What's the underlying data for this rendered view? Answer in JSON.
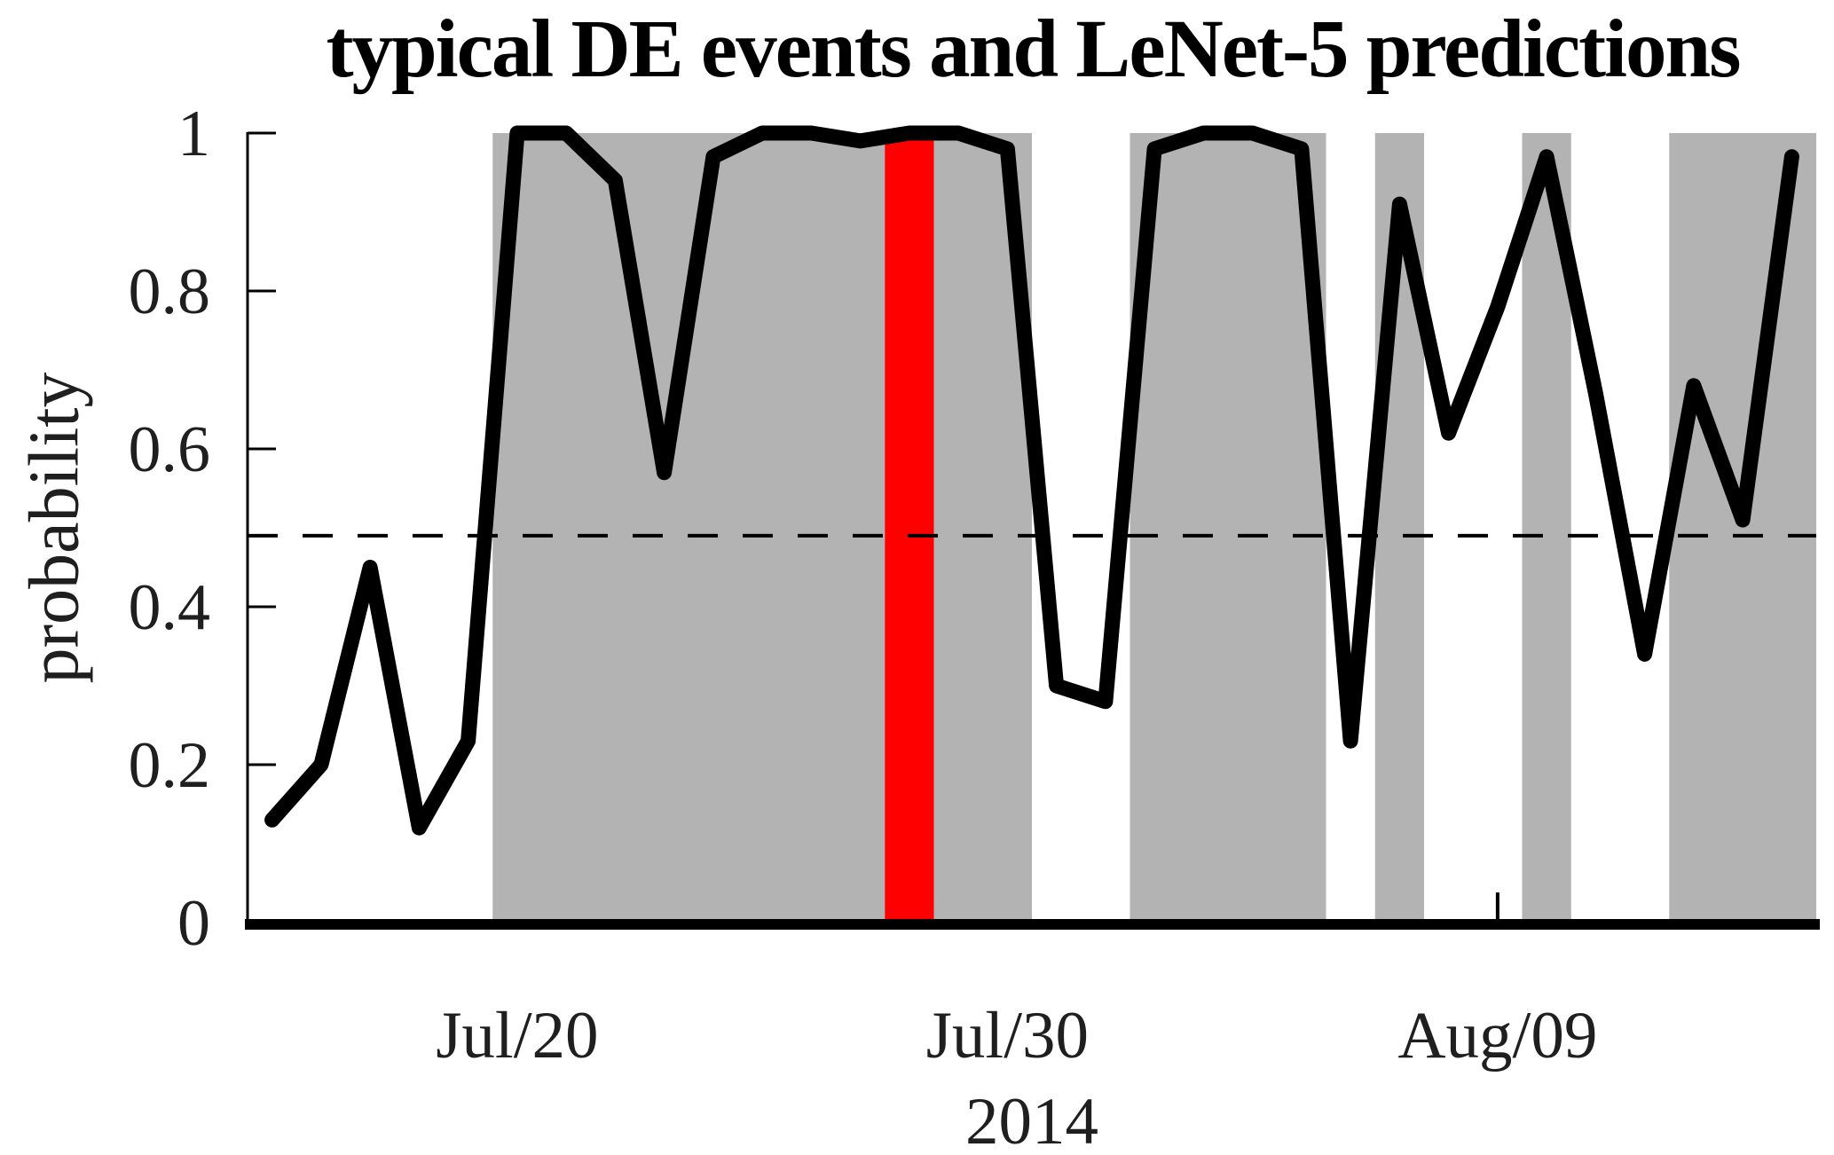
{
  "chart_data": {
    "type": "line",
    "title": "typical DE events and LeNet-5 predictions",
    "ylabel": "probability",
    "xlabel_year": "2014",
    "ylim": [
      0,
      1
    ],
    "xlim_days": [
      -5.5,
      26.5
    ],
    "grid": false,
    "legend": "none",
    "x": [
      "Jul/15",
      "Jul/16",
      "Jul/17",
      "Jul/18",
      "Jul/19",
      "Jul/20",
      "Jul/21",
      "Jul/22",
      "Jul/23",
      "Jul/24",
      "Jul/25",
      "Jul/26",
      "Jul/27",
      "Jul/28",
      "Jul/29",
      "Jul/30",
      "Jul/31",
      "Aug/01",
      "Aug/02",
      "Aug/03",
      "Aug/04",
      "Aug/05",
      "Aug/06",
      "Aug/07",
      "Aug/08",
      "Aug/09",
      "Aug/10",
      "Aug/11",
      "Aug/12",
      "Aug/13",
      "Aug/14",
      "Aug/15"
    ],
    "day_index": [
      -5,
      -4,
      -3,
      -2,
      -1,
      0,
      1,
      2,
      3,
      4,
      5,
      6,
      7,
      8,
      9,
      10,
      11,
      12,
      13,
      14,
      15,
      16,
      17,
      18,
      19,
      20,
      21,
      22,
      23,
      24,
      25,
      26
    ],
    "series": [
      {
        "name": "LeNet-5 predicted probability",
        "values": [
          0.13,
          0.2,
          0.45,
          0.12,
          0.23,
          1.0,
          1.0,
          0.94,
          0.57,
          0.97,
          1.0,
          1.0,
          0.99,
          1.0,
          1.0,
          0.98,
          0.3,
          0.28,
          0.98,
          1.0,
          1.0,
          0.98,
          0.23,
          0.91,
          0.62,
          0.78,
          0.97,
          0.67,
          0.34,
          0.68,
          0.51,
          0.97
        ]
      }
    ],
    "threshold": 0.49,
    "yticks": [
      {
        "v": 0,
        "label": "0"
      },
      {
        "v": 0.2,
        "label": "0.2"
      },
      {
        "v": 0.4,
        "label": "0.4"
      },
      {
        "v": 0.6,
        "label": "0.6"
      },
      {
        "v": 0.8,
        "label": "0.8"
      },
      {
        "v": 1,
        "label": "1"
      }
    ],
    "xticks": [
      {
        "day": 0,
        "label": "Jul/20"
      },
      {
        "day": 10,
        "label": "Jul/30"
      },
      {
        "day": 20,
        "label": "Aug/09"
      }
    ],
    "event_bands_days": [
      [
        -0.5,
        7.5
      ],
      [
        8.5,
        10.5
      ],
      [
        12.5,
        16.5
      ],
      [
        17.5,
        18.5
      ],
      [
        20.5,
        21.5
      ],
      [
        23.5,
        26.5
      ]
    ],
    "highlight_band_days": [
      7.5,
      8.5
    ],
    "colors": {
      "event_band": "#b3b3b3",
      "highlight_band": "#ff0000",
      "line": "#000000",
      "threshold_line": "#000000",
      "axis": "#000000",
      "tick_label": "#1f1f1f"
    }
  }
}
